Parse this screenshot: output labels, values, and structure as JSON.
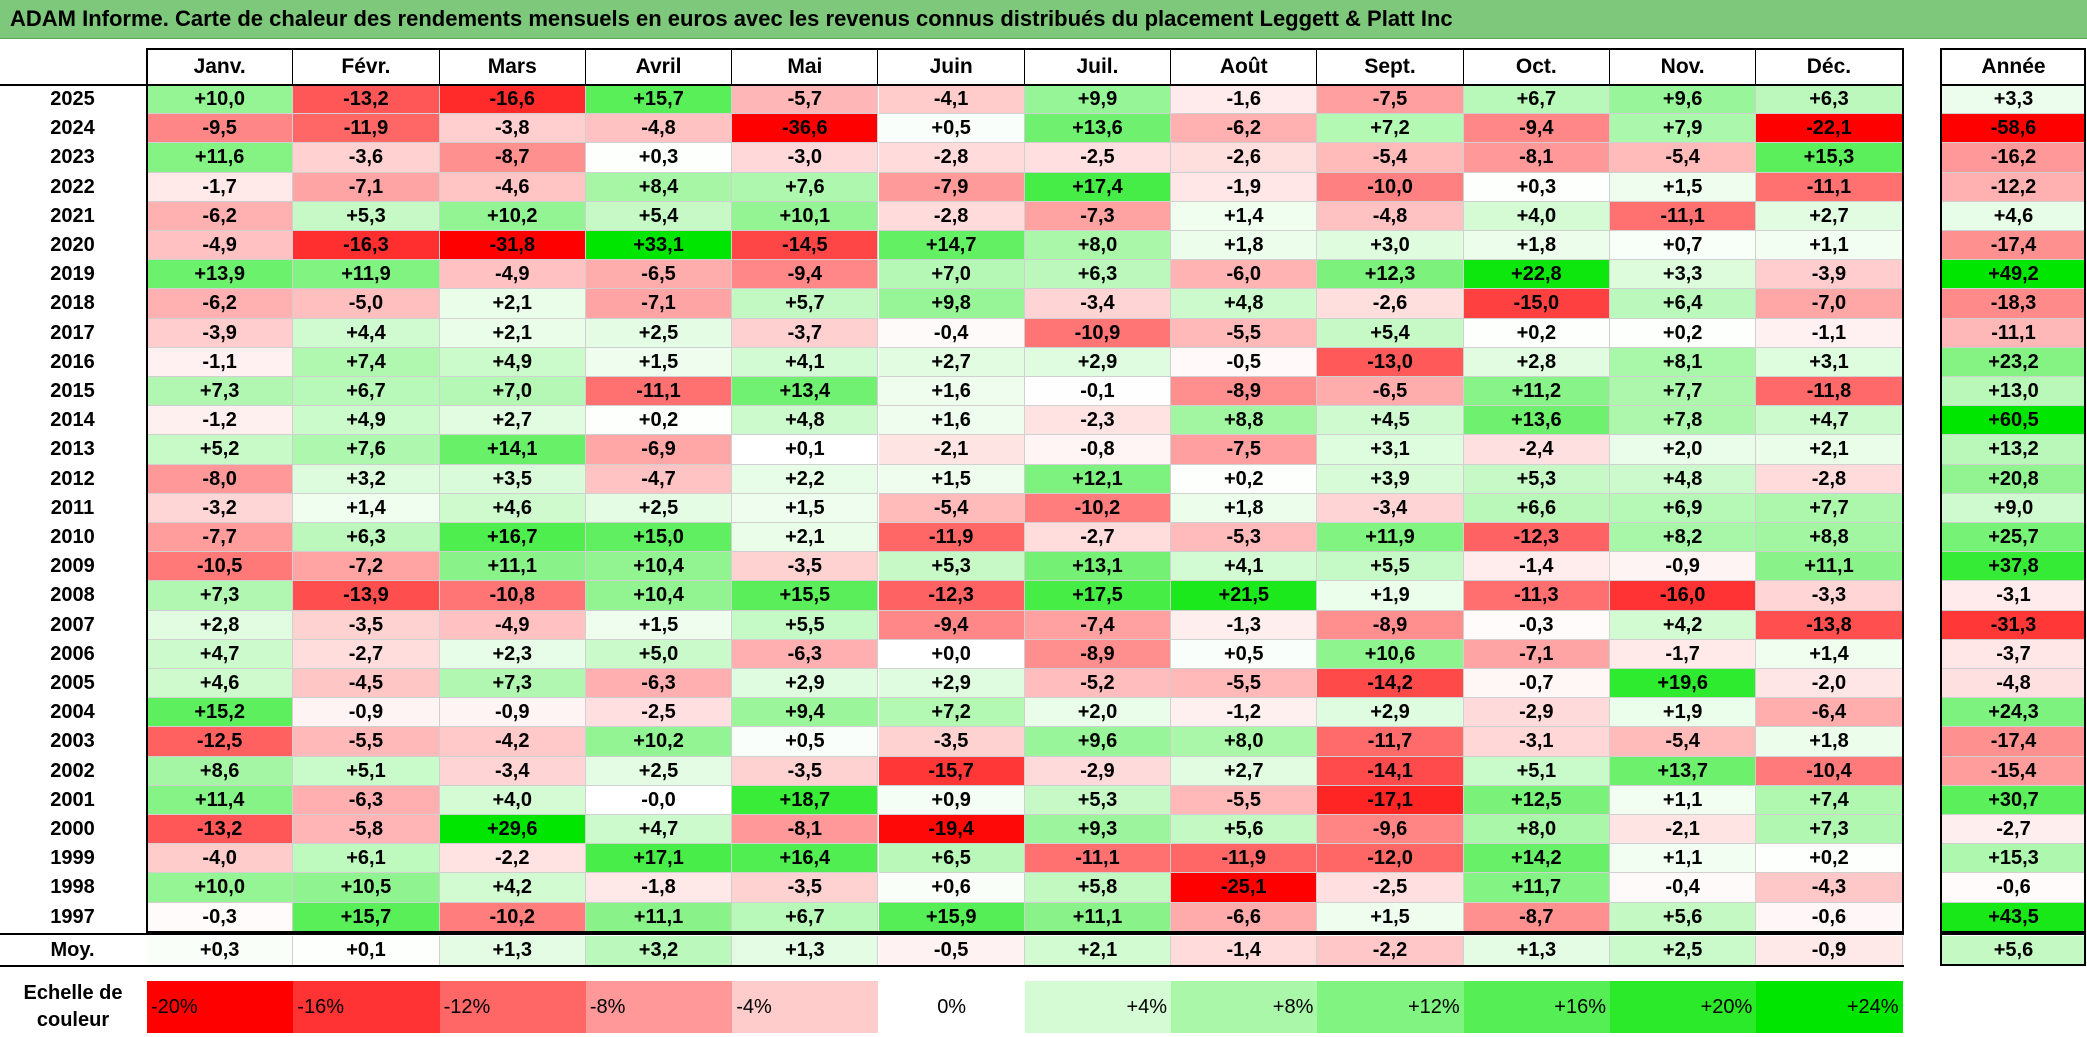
{
  "title": "ADAM Informe. Carte de chaleur des rendements mensuels en euros avec les revenus connus distribués du placement Leggett & Platt Inc",
  "colors": {
    "title_bar": "#7dc87b",
    "negative_max": "#ff0000",
    "neutral": "#ffffff",
    "positive_max": "#00e600"
  },
  "chart_data": {
    "type": "heatmap",
    "columns": [
      "Janv.",
      "Févr.",
      "Mars",
      "Avril",
      "Mai",
      "Juin",
      "Juil.",
      "Août",
      "Sept.",
      "Oct.",
      "Nov.",
      "Déc."
    ],
    "year_column_label": "Année",
    "average_row_label": "Moy.",
    "rows": [
      {
        "year": "2025",
        "values": [
          "+10,0",
          "-13,2",
          "-16,6",
          "+15,7",
          "-5,7",
          "-4,1",
          "+9,9",
          "-1,6",
          "-7,5",
          "+6,7",
          "+9,6",
          "+6,3"
        ],
        "annual": "+3,3"
      },
      {
        "year": "2024",
        "values": [
          "-9,5",
          "-11,9",
          "-3,8",
          "-4,8",
          "-36,6",
          "+0,5",
          "+13,6",
          "-6,2",
          "+7,2",
          "-9,4",
          "+7,9",
          "-22,1"
        ],
        "annual": "-58,6"
      },
      {
        "year": "2023",
        "values": [
          "+11,6",
          "-3,6",
          "-8,7",
          "+0,3",
          "-3,0",
          "-2,8",
          "-2,5",
          "-2,6",
          "-5,4",
          "-8,1",
          "-5,4",
          "+15,3"
        ],
        "annual": "-16,2"
      },
      {
        "year": "2022",
        "values": [
          "-1,7",
          "-7,1",
          "-4,6",
          "+8,4",
          "+7,6",
          "-7,9",
          "+17,4",
          "-1,9",
          "-10,0",
          "+0,3",
          "+1,5",
          "-11,1"
        ],
        "annual": "-12,2"
      },
      {
        "year": "2021",
        "values": [
          "-6,2",
          "+5,3",
          "+10,2",
          "+5,4",
          "+10,1",
          "-2,8",
          "-7,3",
          "+1,4",
          "-4,8",
          "+4,0",
          "-11,1",
          "+2,7"
        ],
        "annual": "+4,6"
      },
      {
        "year": "2020",
        "values": [
          "-4,9",
          "-16,3",
          "-31,8",
          "+33,1",
          "-14,5",
          "+14,7",
          "+8,0",
          "+1,8",
          "+3,0",
          "+1,8",
          "+0,7",
          "+1,1"
        ],
        "annual": "-17,4"
      },
      {
        "year": "2019",
        "values": [
          "+13,9",
          "+11,9",
          "-4,9",
          "-6,5",
          "-9,4",
          "+7,0",
          "+6,3",
          "-6,0",
          "+12,3",
          "+22,8",
          "+3,3",
          "-3,9"
        ],
        "annual": "+49,2"
      },
      {
        "year": "2018",
        "values": [
          "-6,2",
          "-5,0",
          "+2,1",
          "-7,1",
          "+5,7",
          "+9,8",
          "-3,4",
          "+4,8",
          "-2,6",
          "-15,0",
          "+6,4",
          "-7,0"
        ],
        "annual": "-18,3"
      },
      {
        "year": "2017",
        "values": [
          "-3,9",
          "+4,4",
          "+2,1",
          "+2,5",
          "-3,7",
          "-0,4",
          "-10,9",
          "-5,5",
          "+5,4",
          "+0,2",
          "+0,2",
          "-1,1"
        ],
        "annual": "-11,1"
      },
      {
        "year": "2016",
        "values": [
          "-1,1",
          "+7,4",
          "+4,9",
          "+1,5",
          "+4,1",
          "+2,7",
          "+2,9",
          "-0,5",
          "-13,0",
          "+2,8",
          "+8,1",
          "+3,1"
        ],
        "annual": "+23,2"
      },
      {
        "year": "2015",
        "values": [
          "+7,3",
          "+6,7",
          "+7,0",
          "-11,1",
          "+13,4",
          "+1,6",
          "-0,1",
          "-8,9",
          "-6,5",
          "+11,2",
          "+7,7",
          "-11,8"
        ],
        "annual": "+13,0"
      },
      {
        "year": "2014",
        "values": [
          "-1,2",
          "+4,9",
          "+2,7",
          "+0,2",
          "+4,8",
          "+1,6",
          "-2,3",
          "+8,8",
          "+4,5",
          "+13,6",
          "+7,8",
          "+4,7"
        ],
        "annual": "+60,5"
      },
      {
        "year": "2013",
        "values": [
          "+5,2",
          "+7,6",
          "+14,1",
          "-6,9",
          "+0,1",
          "-2,1",
          "-0,8",
          "-7,5",
          "+3,1",
          "-2,4",
          "+2,0",
          "+2,1"
        ],
        "annual": "+13,2"
      },
      {
        "year": "2012",
        "values": [
          "-8,0",
          "+3,2",
          "+3,5",
          "-4,7",
          "+2,2",
          "+1,5",
          "+12,1",
          "+0,2",
          "+3,9",
          "+5,3",
          "+4,8",
          "-2,8"
        ],
        "annual": "+20,8"
      },
      {
        "year": "2011",
        "values": [
          "-3,2",
          "+1,4",
          "+4,6",
          "+2,5",
          "+1,5",
          "-5,4",
          "-10,2",
          "+1,8",
          "-3,4",
          "+6,6",
          "+6,9",
          "+7,7"
        ],
        "annual": "+9,0"
      },
      {
        "year": "2010",
        "values": [
          "-7,7",
          "+6,3",
          "+16,7",
          "+15,0",
          "+2,1",
          "-11,9",
          "-2,7",
          "-5,3",
          "+11,9",
          "-12,3",
          "+8,2",
          "+8,8"
        ],
        "annual": "+25,7"
      },
      {
        "year": "2009",
        "values": [
          "-10,5",
          "-7,2",
          "+11,1",
          "+10,4",
          "-3,5",
          "+5,3",
          "+13,1",
          "+4,1",
          "+5,5",
          "-1,4",
          "-0,9",
          "+11,1"
        ],
        "annual": "+37,8"
      },
      {
        "year": "2008",
        "values": [
          "+7,3",
          "-13,9",
          "-10,8",
          "+10,4",
          "+15,5",
          "-12,3",
          "+17,5",
          "+21,5",
          "+1,9",
          "-11,3",
          "-16,0",
          "-3,3"
        ],
        "annual": "-3,1"
      },
      {
        "year": "2007",
        "values": [
          "+2,8",
          "-3,5",
          "-4,9",
          "+1,5",
          "+5,5",
          "-9,4",
          "-7,4",
          "-1,3",
          "-8,9",
          "-0,3",
          "+4,2",
          "-13,8"
        ],
        "annual": "-31,3"
      },
      {
        "year": "2006",
        "values": [
          "+4,7",
          "-2,7",
          "+2,3",
          "+5,0",
          "-6,3",
          "+0,0",
          "-8,9",
          "+0,5",
          "+10,6",
          "-7,1",
          "-1,7",
          "+1,4"
        ],
        "annual": "-3,7"
      },
      {
        "year": "2005",
        "values": [
          "+4,6",
          "-4,5",
          "+7,3",
          "-6,3",
          "+2,9",
          "+2,9",
          "-5,2",
          "-5,5",
          "-14,2",
          "-0,7",
          "+19,6",
          "-2,0"
        ],
        "annual": "-4,8"
      },
      {
        "year": "2004",
        "values": [
          "+15,2",
          "-0,9",
          "-0,9",
          "-2,5",
          "+9,4",
          "+7,2",
          "+2,0",
          "-1,2",
          "+2,9",
          "-2,9",
          "+1,9",
          "-6,4"
        ],
        "annual": "+24,3"
      },
      {
        "year": "2003",
        "values": [
          "-12,5",
          "-5,5",
          "-4,2",
          "+10,2",
          "+0,5",
          "-3,5",
          "+9,6",
          "+8,0",
          "-11,7",
          "-3,1",
          "-5,4",
          "+1,8"
        ],
        "annual": "-17,4"
      },
      {
        "year": "2002",
        "values": [
          "+8,6",
          "+5,1",
          "-3,4",
          "+2,5",
          "-3,5",
          "-15,7",
          "-2,9",
          "+2,7",
          "-14,1",
          "+5,1",
          "+13,7",
          "-10,4"
        ],
        "annual": "-15,4"
      },
      {
        "year": "2001",
        "values": [
          "+11,4",
          "-6,3",
          "+4,0",
          "-0,0",
          "+18,7",
          "+0,9",
          "+5,3",
          "-5,5",
          "-17,1",
          "+12,5",
          "+1,1",
          "+7,4"
        ],
        "annual": "+30,7"
      },
      {
        "year": "2000",
        "values": [
          "-13,2",
          "-5,8",
          "+29,6",
          "+4,7",
          "-8,1",
          "-19,4",
          "+9,3",
          "+5,6",
          "-9,6",
          "+8,0",
          "-2,1",
          "+7,3"
        ],
        "annual": "-2,7"
      },
      {
        "year": "1999",
        "values": [
          "-4,0",
          "+6,1",
          "-2,2",
          "+17,1",
          "+16,4",
          "+6,5",
          "-11,1",
          "-11,9",
          "-12,0",
          "+14,2",
          "+1,1",
          "+0,2"
        ],
        "annual": "+15,3"
      },
      {
        "year": "1998",
        "values": [
          "+10,0",
          "+10,5",
          "+4,2",
          "-1,8",
          "-3,5",
          "+0,6",
          "+5,8",
          "-25,1",
          "-2,5",
          "+11,7",
          "-0,4",
          "-4,3"
        ],
        "annual": "-0,6"
      },
      {
        "year": "1997",
        "values": [
          "-0,3",
          "+15,7",
          "-10,2",
          "+11,1",
          "+6,7",
          "+15,9",
          "+11,1",
          "-6,6",
          "+1,5",
          "-8,7",
          "+5,6",
          "-0,6"
        ],
        "annual": "+43,5"
      }
    ],
    "average": {
      "values": [
        "+0,3",
        "+0,1",
        "+1,3",
        "+3,2",
        "+1,3",
        "-0,5",
        "+2,1",
        "-1,4",
        "-2,2",
        "+1,3",
        "+2,5",
        "-0,9"
      ],
      "annual": "+5,6"
    },
    "legend": {
      "label": "Echelle de couleur",
      "steps": [
        {
          "label": "-20%",
          "value": -20
        },
        {
          "label": "-16%",
          "value": -16
        },
        {
          "label": "-12%",
          "value": -12
        },
        {
          "label": "-8%",
          "value": -8
        },
        {
          "label": "-4%",
          "value": -4
        },
        {
          "label": "0%",
          "value": 0
        },
        {
          "label": "+4%",
          "value": 4
        },
        {
          "label": "+8%",
          "value": 8
        },
        {
          "label": "+12%",
          "value": 12
        },
        {
          "label": "+16%",
          "value": 16
        },
        {
          "label": "+20%",
          "value": 20
        },
        {
          "label": "+24%",
          "value": 24
        }
      ]
    }
  }
}
